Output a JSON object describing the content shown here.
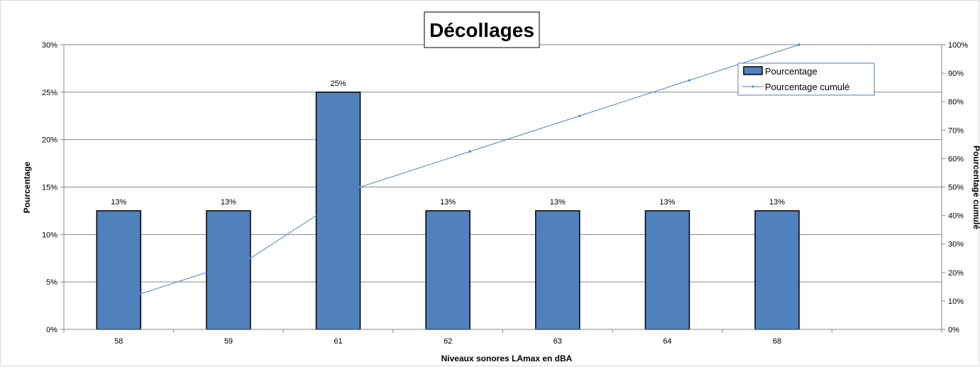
{
  "chart_data": {
    "type": "bar",
    "title": "Décollages",
    "xlabel": "Niveaux sonores LAmax en dBA",
    "ylabel": "Pourcentage",
    "y2label": "Pourcentage cumulé",
    "categories": [
      "58",
      "59",
      "61",
      "62",
      "63",
      "64",
      "68"
    ],
    "ylim": [
      0,
      30
    ],
    "y2lim": [
      0,
      100
    ],
    "yticks": [
      "0%",
      "5%",
      "10%",
      "15%",
      "20%",
      "25%",
      "30%"
    ],
    "y2ticks": [
      "0%",
      "10%",
      "20%",
      "30%",
      "40%",
      "50%",
      "60%",
      "70%",
      "80%",
      "90%",
      "100%"
    ],
    "grid": true,
    "legend_position": "top-right",
    "series": [
      {
        "name": "Pourcentage",
        "type": "bar",
        "axis": "left",
        "color": "#4f81bd",
        "values": [
          12.5,
          12.5,
          25,
          12.5,
          12.5,
          12.5,
          12.5
        ],
        "labels": [
          "13%",
          "13%",
          "25%",
          "13%",
          "13%",
          "13%",
          "13%"
        ]
      },
      {
        "name": "Pourcentage cumulé",
        "type": "line",
        "axis": "right",
        "color": "#4f81bd",
        "values": [
          12.5,
          25,
          50,
          62.5,
          75,
          87.5,
          100
        ]
      }
    ]
  }
}
